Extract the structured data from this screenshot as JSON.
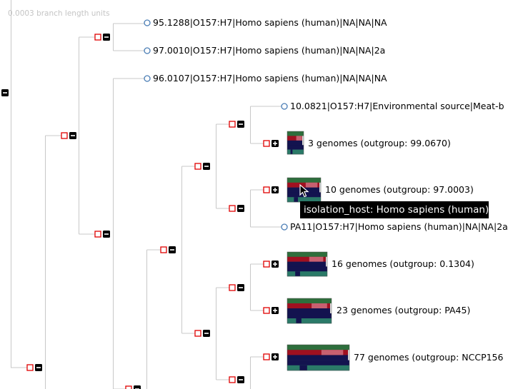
{
  "scale": {
    "label": "0.0003 branch length units"
  },
  "leaves": [
    {
      "id": "leaf-1",
      "label": "95.1288|O157:H7|Homo sapiens (human)|NA|NA|NA"
    },
    {
      "id": "leaf-2",
      "label": "97.0010|O157:H7|Homo sapiens (human)|NA|NA|2a"
    },
    {
      "id": "leaf-3",
      "label": "96.0107|O157:H7|Homo sapiens (human)|NA|NA|NA"
    },
    {
      "id": "leaf-4",
      "label": "10.0821|O157:H7|Environmental source|Meat-b"
    },
    {
      "id": "leaf-5",
      "label": "PA11|O157:H7|Homo sapiens (human)|NA|NA|2a"
    }
  ],
  "collapsed_groups": [
    {
      "id": "group-1",
      "label": "3 genomes (outgroup: 99.0670)"
    },
    {
      "id": "group-2",
      "label": "10 genomes (outgroup: 97.0003)"
    },
    {
      "id": "group-3",
      "label": "16 genomes (outgroup: 0.1304)"
    },
    {
      "id": "group-4",
      "label": "23 genomes (outgroup: PA45)"
    },
    {
      "id": "group-5",
      "label": "77 genomes (outgroup: NCCP156"
    }
  ],
  "tooltip": {
    "text": "isolation_host: Homo sapiens (human)"
  },
  "colors": {
    "branch": "#c8c8c8",
    "node_box": "#e00000",
    "toggle": "#000000",
    "leaf_circle": "#4a7db5",
    "heat_green": "#2e6e3c",
    "heat_red": "#a01020",
    "heat_navy": "#13134f",
    "heat_teal": "#2a7a68",
    "heat_pink": "#c86070"
  }
}
